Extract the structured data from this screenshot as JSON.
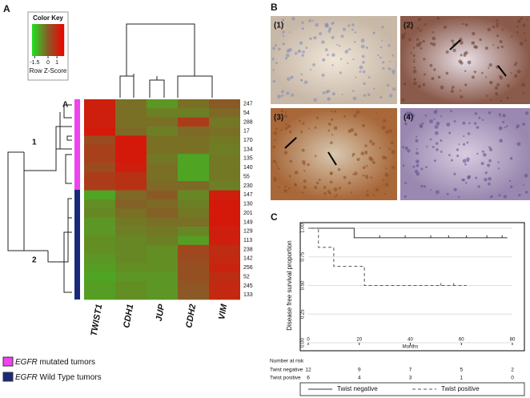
{
  "panels": {
    "a": "A",
    "b": "B",
    "c": "C"
  },
  "annotations": {
    "cluster1": "1",
    "cluster2": "2",
    "subcluster": "A"
  },
  "photos": [
    "(1)",
    "(2)",
    "(3)",
    "(4)"
  ],
  "legend": [
    {
      "gene": "EGFR",
      "text": " mutated tumors"
    },
    {
      "gene": "EGFR",
      "text": " Wild Type tumors"
    }
  ],
  "chart_data": [
    {
      "type": "heatmap",
      "colors": [
        "#22e022",
        "#8a5a26",
        "#f00000"
      ],
      "columns": [
        "TWIST1",
        "CDH1",
        "JUP",
        "CDH2",
        "VIM"
      ],
      "rows": [
        "247",
        "54",
        "288",
        "17",
        "170",
        "134",
        "135",
        "140",
        "55",
        "230",
        "147",
        "130",
        "201",
        "149",
        "129",
        "113",
        "238",
        "142",
        "256",
        "52",
        "245",
        "133"
      ],
      "values": [
        [
          1.2,
          -0.3,
          -0.8,
          -0.3,
          0
        ],
        [
          1.2,
          -0.3,
          -0.5,
          -0.5,
          -0.2
        ],
        [
          1.2,
          -0.3,
          -0.3,
          0.6,
          -0.4
        ],
        [
          1.3,
          -0.2,
          -0.5,
          -0.2,
          -0.3
        ],
        [
          0.3,
          1.3,
          -0.3,
          -0.3,
          -0.4
        ],
        [
          0.5,
          1.3,
          -0.3,
          -0.3,
          -0.5
        ],
        [
          0.5,
          1.3,
          -0.4,
          -1.0,
          -0.4
        ],
        [
          0.3,
          1.2,
          -0.3,
          -1.0,
          -0.4
        ],
        [
          0.6,
          0.8,
          -0.3,
          -1.0,
          -0.4
        ],
        [
          0.6,
          0.8,
          -0.2,
          -0.2,
          -0.5
        ],
        [
          -1.0,
          -0.2,
          0,
          -0.6,
          1.2
        ],
        [
          -0.7,
          -0.1,
          -0.2,
          -0.5,
          1.3
        ],
        [
          -0.6,
          -0.3,
          -0.1,
          -0.4,
          1.3
        ],
        [
          -0.8,
          -0.4,
          -0.3,
          -0.3,
          1.3
        ],
        [
          -0.8,
          -0.5,
          -0.4,
          -0.6,
          1.2
        ],
        [
          -0.7,
          -0.6,
          -0.5,
          -0.9,
          1.2
        ],
        [
          -0.7,
          -0.6,
          -0.7,
          0.4,
          0.9
        ],
        [
          -0.8,
          -0.6,
          -0.7,
          0.3,
          1.0
        ],
        [
          -0.9,
          -0.7,
          -0.7,
          0.2,
          1.1
        ],
        [
          -1.0,
          -0.8,
          -0.8,
          0.2,
          0.9
        ],
        [
          -0.9,
          -0.7,
          -0.8,
          0.1,
          1.0
        ],
        [
          -0.9,
          -0.7,
          -0.8,
          0.0,
          1.0
        ]
      ],
      "color_key": {
        "title": "Color Key",
        "xlabel": "Row Z-Score",
        "xlim": [
          -1.8,
          1.8
        ],
        "xticks": [
          -1.5,
          0,
          1
        ]
      }
    },
    {
      "type": "line",
      "step": true,
      "xlabel": "Months",
      "ylabel": "Disease free survival proportion",
      "xlim": [
        0,
        80
      ],
      "xticks": [
        0,
        20,
        40,
        60,
        80
      ],
      "ylim": [
        0,
        1
      ],
      "yticks": [
        {
          "value": 0,
          "label": "0.00"
        },
        {
          "value": 0.25,
          "label": "0.25"
        },
        {
          "value": 0.5,
          "label": "0.50"
        },
        {
          "value": 0.75,
          "label": "0.75"
        },
        {
          "value": 1,
          "label": "1.00"
        }
      ],
      "grid": true,
      "series": [
        {
          "name": "Twist negative",
          "color": "#333333",
          "dash": false,
          "x": [
            0,
            18,
            78
          ],
          "values": [
            1,
            0.917,
            0.917
          ],
          "censored": [
            28,
            38,
            48,
            55,
            62,
            70,
            76
          ]
        },
        {
          "name": "Twist positive",
          "color": "#555555",
          "dash": true,
          "x": [
            0,
            4,
            10,
            22,
            62
          ],
          "values": [
            1,
            0.833,
            0.667,
            0.5,
            0.5
          ],
          "censored": [
            52,
            57
          ]
        }
      ],
      "risk_table": {
        "title": "Number at risk",
        "x": [
          0,
          20,
          40,
          60,
          80
        ],
        "rows": [
          {
            "name": "Twist negative",
            "values": [
              12,
              9,
              7,
              5,
              2
            ]
          },
          {
            "name": "Twist positive",
            "values": [
              6,
              4,
              3,
              1,
              0
            ]
          }
        ]
      }
    }
  ]
}
